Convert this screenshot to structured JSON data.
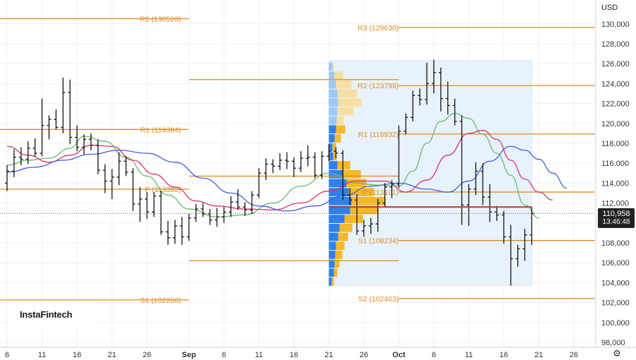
{
  "currency": "USD",
  "last_price": "110,958",
  "countdown": "13:46:48",
  "logo": "InstaFintech",
  "settings_icon": "gear-icon",
  "colors": {
    "pivot": "#e08a1e",
    "price_line": "#c0392b",
    "ma_fast": "#66bb6a",
    "ma_mid": "#d6336c",
    "ma_slow": "#3f5fd6",
    "vp_blue_dark": "#2f80ed",
    "vp_blue_light": "#9cc8f5",
    "vp_orange_dark": "#f5b829",
    "vp_orange_light": "#f7dfa3",
    "vp_background": "#e8f2fc"
  },
  "chart_data": {
    "type": "ohlc-bar",
    "instrument_currency": "USD",
    "y_axis": {
      "min": 98000,
      "max": 131000,
      "ticks": [
        "98,000",
        "100,000",
        "102,000",
        "104,000",
        "106,000",
        "108,000",
        "110,000",
        "112,000",
        "114,000",
        "116,000",
        "118,000",
        "120,000",
        "122,000",
        "124,000",
        "126,000",
        "128,000",
        "130,000"
      ]
    },
    "x_axis": {
      "labels": [
        {
          "text": "6",
          "idx": 0
        },
        {
          "text": "11",
          "idx": 5
        },
        {
          "text": "16",
          "idx": 10
        },
        {
          "text": "21",
          "idx": 15
        },
        {
          "text": "26",
          "idx": 20
        },
        {
          "text": "Sep",
          "idx": 26,
          "bold": true
        },
        {
          "text": "6",
          "idx": 31
        },
        {
          "text": "11",
          "idx": 36
        },
        {
          "text": "16",
          "idx": 41
        },
        {
          "text": "21",
          "idx": 46
        },
        {
          "text": "26",
          "idx": 51
        },
        {
          "text": "Oct",
          "idx": 56,
          "bold": true
        },
        {
          "text": "6",
          "idx": 61
        },
        {
          "text": "11",
          "idx": 66
        },
        {
          "text": "16",
          "idx": 71
        },
        {
          "text": "21",
          "idx": 76
        },
        {
          "text": "26",
          "idx": 81
        }
      ]
    },
    "pivot_sets": [
      {
        "name": "August",
        "start_idx": -1,
        "end_idx": 26,
        "levels": [
          {
            "label": "R2 (130520)",
            "value": 130520
          },
          {
            "label": "R1 (119394)",
            "value": 119394
          },
          {
            "label": "P (113392)",
            "value": 113392
          },
          {
            "label": "S1 (102266)",
            "value": 102266
          }
        ]
      },
      {
        "name": "September",
        "start_idx": 26,
        "end_idx": 56,
        "levels": [
          {
            "label": "",
            "value": 124400
          },
          {
            "label": "",
            "value": 114700
          },
          {
            "label": "",
            "value": 106200
          }
        ]
      },
      {
        "name": "October",
        "start_idx": 56,
        "end_idx": 84,
        "levels": [
          {
            "label": "R3 (129630)",
            "value": 129630
          },
          {
            "label": "R2 (123799)",
            "value": 123799
          },
          {
            "label": "R1 (118932)",
            "value": 118932
          },
          {
            "label": "P (113101)",
            "value": 113101
          },
          {
            "label": "S1 (108234)",
            "value": 108234
          },
          {
            "label": "S2 (102403)",
            "value": 102403
          }
        ]
      }
    ],
    "bars": [
      {
        "o": 114000,
        "h": 115800,
        "l": 113200,
        "c": 115200
      },
      {
        "o": 115200,
        "h": 117400,
        "l": 114600,
        "c": 116600
      },
      {
        "o": 116600,
        "h": 117600,
        "l": 115800,
        "c": 116400
      },
      {
        "o": 116400,
        "h": 118200,
        "l": 115900,
        "c": 117500
      },
      {
        "o": 117500,
        "h": 118500,
        "l": 116700,
        "c": 117000
      },
      {
        "o": 117000,
        "h": 122500,
        "l": 116700,
        "c": 119800
      },
      {
        "o": 119800,
        "h": 120800,
        "l": 118400,
        "c": 120400
      },
      {
        "o": 120400,
        "h": 121400,
        "l": 119400,
        "c": 119600
      },
      {
        "o": 119600,
        "h": 124600,
        "l": 119000,
        "c": 123100
      },
      {
        "o": 123100,
        "h": 124400,
        "l": 117900,
        "c": 118600
      },
      {
        "o": 118600,
        "h": 119800,
        "l": 117200,
        "c": 117600
      },
      {
        "o": 117600,
        "h": 118900,
        "l": 116900,
        "c": 118400
      },
      {
        "o": 118400,
        "h": 119000,
        "l": 117300,
        "c": 117800
      },
      {
        "o": 117800,
        "h": 118400,
        "l": 114900,
        "c": 115300
      },
      {
        "o": 115300,
        "h": 115900,
        "l": 113000,
        "c": 114200
      },
      {
        "o": 114200,
        "h": 115400,
        "l": 112400,
        "c": 114600
      },
      {
        "o": 114600,
        "h": 117100,
        "l": 113800,
        "c": 116200
      },
      {
        "o": 116200,
        "h": 116700,
        "l": 114700,
        "c": 115100
      },
      {
        "o": 115100,
        "h": 115500,
        "l": 111200,
        "c": 111900
      },
      {
        "o": 111900,
        "h": 113600,
        "l": 110100,
        "c": 112400
      },
      {
        "o": 112400,
        "h": 113100,
        "l": 110400,
        "c": 111100
      },
      {
        "o": 111100,
        "h": 113100,
        "l": 110600,
        "c": 112700
      },
      {
        "o": 112700,
        "h": 113200,
        "l": 108800,
        "c": 109100
      },
      {
        "o": 109100,
        "h": 110200,
        "l": 107800,
        "c": 108500
      },
      {
        "o": 108500,
        "h": 110300,
        "l": 107900,
        "c": 109700
      },
      {
        "o": 109700,
        "h": 110600,
        "l": 107800,
        "c": 108600
      },
      {
        "o": 108600,
        "h": 110900,
        "l": 108200,
        "c": 110500
      },
      {
        "o": 110500,
        "h": 111900,
        "l": 110100,
        "c": 111400
      },
      {
        "o": 111400,
        "h": 112000,
        "l": 110600,
        "c": 110900
      },
      {
        "o": 110900,
        "h": 111400,
        "l": 109800,
        "c": 110300
      },
      {
        "o": 110300,
        "h": 111500,
        "l": 109600,
        "c": 110600
      },
      {
        "o": 110600,
        "h": 111600,
        "l": 110000,
        "c": 111100
      },
      {
        "o": 111100,
        "h": 112700,
        "l": 110600,
        "c": 112100
      },
      {
        "o": 112100,
        "h": 113400,
        "l": 111300,
        "c": 111600
      },
      {
        "o": 111600,
        "h": 112100,
        "l": 110700,
        "c": 111300
      },
      {
        "o": 111300,
        "h": 113200,
        "l": 110900,
        "c": 112800
      },
      {
        "o": 112800,
        "h": 115500,
        "l": 112500,
        "c": 115000
      },
      {
        "o": 115000,
        "h": 116500,
        "l": 114300,
        "c": 115900
      },
      {
        "o": 115900,
        "h": 116400,
        "l": 115000,
        "c": 115700
      },
      {
        "o": 115700,
        "h": 117000,
        "l": 115300,
        "c": 116300
      },
      {
        "o": 116300,
        "h": 117100,
        "l": 115400,
        "c": 116200
      },
      {
        "o": 116200,
        "h": 116600,
        "l": 114600,
        "c": 115500
      },
      {
        "o": 115500,
        "h": 117200,
        "l": 115100,
        "c": 116500
      },
      {
        "o": 116500,
        "h": 117800,
        "l": 115700,
        "c": 116600
      },
      {
        "o": 116600,
        "h": 117100,
        "l": 114500,
        "c": 114800
      },
      {
        "o": 114800,
        "h": 117200,
        "l": 114400,
        "c": 116700
      },
      {
        "o": 116700,
        "h": 117900,
        "l": 116200,
        "c": 117200
      },
      {
        "o": 117200,
        "h": 117600,
        "l": 116500,
        "c": 117000
      },
      {
        "o": 117000,
        "h": 117300,
        "l": 112300,
        "c": 112800
      },
      {
        "o": 112800,
        "h": 113500,
        "l": 111800,
        "c": 112300
      },
      {
        "o": 112300,
        "h": 112900,
        "l": 108800,
        "c": 109200
      },
      {
        "o": 109200,
        "h": 110300,
        "l": 108600,
        "c": 109700
      },
      {
        "o": 109700,
        "h": 110500,
        "l": 108900,
        "c": 109900
      },
      {
        "o": 109900,
        "h": 112400,
        "l": 109100,
        "c": 112000
      },
      {
        "o": 112000,
        "h": 114000,
        "l": 111600,
        "c": 113600
      },
      {
        "o": 113600,
        "h": 114300,
        "l": 112500,
        "c": 113900
      },
      {
        "o": 113900,
        "h": 119800,
        "l": 113500,
        "c": 119200
      },
      {
        "o": 119200,
        "h": 121000,
        "l": 118900,
        "c": 120600
      },
      {
        "o": 120600,
        "h": 123300,
        "l": 120200,
        "c": 122800
      },
      {
        "o": 122800,
        "h": 123500,
        "l": 121800,
        "c": 122400
      },
      {
        "o": 122400,
        "h": 126100,
        "l": 121900,
        "c": 124000
      },
      {
        "o": 124000,
        "h": 126400,
        "l": 123000,
        "c": 125100
      },
      {
        "o": 125100,
        "h": 125600,
        "l": 121200,
        "c": 122500
      },
      {
        "o": 122500,
        "h": 124200,
        "l": 120900,
        "c": 121800
      },
      {
        "o": 121800,
        "h": 122500,
        "l": 119800,
        "c": 120200
      },
      {
        "o": 120200,
        "h": 120800,
        "l": 109800,
        "c": 111800
      },
      {
        "o": 111800,
        "h": 113900,
        "l": 109700,
        "c": 113400
      },
      {
        "o": 113400,
        "h": 116100,
        "l": 112800,
        "c": 115200
      },
      {
        "o": 115200,
        "h": 116000,
        "l": 111800,
        "c": 112600
      },
      {
        "o": 112600,
        "h": 113900,
        "l": 110100,
        "c": 111100
      },
      {
        "o": 111100,
        "h": 111700,
        "l": 110200,
        "c": 110800
      },
      {
        "o": 110800,
        "h": 111200,
        "l": 107900,
        "c": 108600
      },
      {
        "o": 108600,
        "h": 109800,
        "l": 103700,
        "c": 106400
      },
      {
        "o": 106400,
        "h": 107800,
        "l": 105600,
        "c": 107400
      },
      {
        "o": 107400,
        "h": 109400,
        "l": 106200,
        "c": 108800
      },
      {
        "o": 108800,
        "h": 111600,
        "l": 107800,
        "c": 110958
      }
    ],
    "moving_averages": [
      {
        "name": "fast",
        "color_key": "ma_fast",
        "points": [
          {
            "idx": 0,
            "v": 115800
          },
          {
            "idx": 3,
            "v": 116300
          },
          {
            "idx": 6,
            "v": 116500
          },
          {
            "idx": 9,
            "v": 117500
          },
          {
            "idx": 11,
            "v": 118700
          },
          {
            "idx": 14,
            "v": 118200
          },
          {
            "idx": 17,
            "v": 116600
          },
          {
            "idx": 20,
            "v": 114700
          },
          {
            "idx": 23,
            "v": 112800
          },
          {
            "idx": 26,
            "v": 111400
          },
          {
            "idx": 30,
            "v": 110600
          },
          {
            "idx": 34,
            "v": 110800
          },
          {
            "idx": 38,
            "v": 112000
          },
          {
            "idx": 42,
            "v": 113700
          },
          {
            "idx": 46,
            "v": 115000
          },
          {
            "idx": 50,
            "v": 114000
          },
          {
            "idx": 53,
            "v": 113800
          },
          {
            "idx": 56,
            "v": 113700
          },
          {
            "idx": 58,
            "v": 115200
          },
          {
            "idx": 60,
            "v": 118000
          },
          {
            "idx": 62,
            "v": 120200
          },
          {
            "idx": 64,
            "v": 121000
          },
          {
            "idx": 66,
            "v": 120500
          },
          {
            "idx": 68,
            "v": 118900
          },
          {
            "idx": 70,
            "v": 117000
          },
          {
            "idx": 72,
            "v": 114800
          },
          {
            "idx": 74,
            "v": 111800
          },
          {
            "idx": 76,
            "v": 110500
          }
        ]
      },
      {
        "name": "mid",
        "color_key": "ma_mid",
        "points": [
          {
            "idx": 0,
            "v": 117700
          },
          {
            "idx": 3,
            "v": 116800
          },
          {
            "idx": 6,
            "v": 116100
          },
          {
            "idx": 9,
            "v": 116800
          },
          {
            "idx": 12,
            "v": 117800
          },
          {
            "idx": 15,
            "v": 117700
          },
          {
            "idx": 18,
            "v": 116300
          },
          {
            "idx": 21,
            "v": 114900
          },
          {
            "idx": 24,
            "v": 113600
          },
          {
            "idx": 27,
            "v": 112200
          },
          {
            "idx": 30,
            "v": 111700
          },
          {
            "idx": 34,
            "v": 111400
          },
          {
            "idx": 38,
            "v": 111300
          },
          {
            "idx": 42,
            "v": 112000
          },
          {
            "idx": 46,
            "v": 113200
          },
          {
            "idx": 50,
            "v": 114200
          },
          {
            "idx": 54,
            "v": 114200
          },
          {
            "idx": 57,
            "v": 113100
          },
          {
            "idx": 60,
            "v": 114300
          },
          {
            "idx": 63,
            "v": 116800
          },
          {
            "idx": 66,
            "v": 119000
          },
          {
            "idx": 68,
            "v": 119300
          },
          {
            "idx": 70,
            "v": 118400
          },
          {
            "idx": 72,
            "v": 116300
          },
          {
            "idx": 74,
            "v": 114400
          },
          {
            "idx": 76,
            "v": 113100
          },
          {
            "idx": 78,
            "v": 112300
          }
        ]
      },
      {
        "name": "slow",
        "color_key": "ma_slow",
        "points": [
          {
            "idx": 0,
            "v": 115100
          },
          {
            "idx": 4,
            "v": 115600
          },
          {
            "idx": 8,
            "v": 116300
          },
          {
            "idx": 12,
            "v": 116900
          },
          {
            "idx": 16,
            "v": 117300
          },
          {
            "idx": 20,
            "v": 117000
          },
          {
            "idx": 24,
            "v": 116100
          },
          {
            "idx": 28,
            "v": 114500
          },
          {
            "idx": 32,
            "v": 113000
          },
          {
            "idx": 36,
            "v": 111700
          },
          {
            "idx": 40,
            "v": 111200
          },
          {
            "idx": 44,
            "v": 111700
          },
          {
            "idx": 48,
            "v": 112700
          },
          {
            "idx": 52,
            "v": 113700
          },
          {
            "idx": 56,
            "v": 114000
          },
          {
            "idx": 60,
            "v": 113400
          },
          {
            "idx": 63,
            "v": 113100
          },
          {
            "idx": 66,
            "v": 114200
          },
          {
            "idx": 69,
            "v": 116200
          },
          {
            "idx": 72,
            "v": 117700
          },
          {
            "idx": 74,
            "v": 117300
          },
          {
            "idx": 76,
            "v": 116400
          },
          {
            "idx": 78,
            "v": 115000
          },
          {
            "idx": 80,
            "v": 113500
          }
        ]
      }
    ],
    "volume_profile": {
      "start_idx": 46,
      "end_idx": 75,
      "price_min": 103700,
      "price_max": 126300,
      "rows": [
        {
          "price": 125700,
          "blue": 0.05,
          "orange": 0.02
        },
        {
          "price": 124800,
          "blue": 0.08,
          "orange": 0.12
        },
        {
          "price": 123900,
          "blue": 0.1,
          "orange": 0.22
        },
        {
          "price": 123000,
          "blue": 0.12,
          "orange": 0.28
        },
        {
          "price": 122100,
          "blue": 0.13,
          "orange": 0.33
        },
        {
          "price": 121200,
          "blue": 0.12,
          "orange": 0.23
        },
        {
          "price": 120300,
          "blue": 0.11,
          "orange": 0.1
        },
        {
          "price": 119400,
          "blue": 0.1,
          "orange": 0.13
        },
        {
          "price": 118500,
          "blue": 0.08,
          "orange": 0.09
        },
        {
          "price": 117600,
          "blue": 0.05,
          "orange": 0.05
        },
        {
          "price": 116700,
          "blue": 0.06,
          "orange": 0.05
        },
        {
          "price": 115800,
          "blue": 0.12,
          "orange": 0.18
        },
        {
          "price": 114900,
          "blue": 0.2,
          "orange": 0.25
        },
        {
          "price": 114000,
          "blue": 0.25,
          "orange": 0.28
        },
        {
          "price": 113100,
          "blue": 0.28,
          "orange": 0.35
        },
        {
          "price": 112200,
          "blue": 0.32,
          "orange": 0.48
        },
        {
          "price": 111300,
          "blue": 0.3,
          "orange": 0.4
        },
        {
          "price": 110400,
          "blue": 0.22,
          "orange": 0.26
        },
        {
          "price": 109500,
          "blue": 0.15,
          "orange": 0.18
        },
        {
          "price": 108600,
          "blue": 0.13,
          "orange": 0.14
        },
        {
          "price": 107700,
          "blue": 0.1,
          "orange": 0.12
        },
        {
          "price": 106800,
          "blue": 0.09,
          "orange": 0.1
        },
        {
          "price": 105900,
          "blue": 0.08,
          "orange": 0.07
        },
        {
          "price": 105000,
          "blue": 0.07,
          "orange": 0.05
        },
        {
          "price": 104100,
          "blue": 0.04,
          "orange": 0.03
        }
      ]
    }
  }
}
